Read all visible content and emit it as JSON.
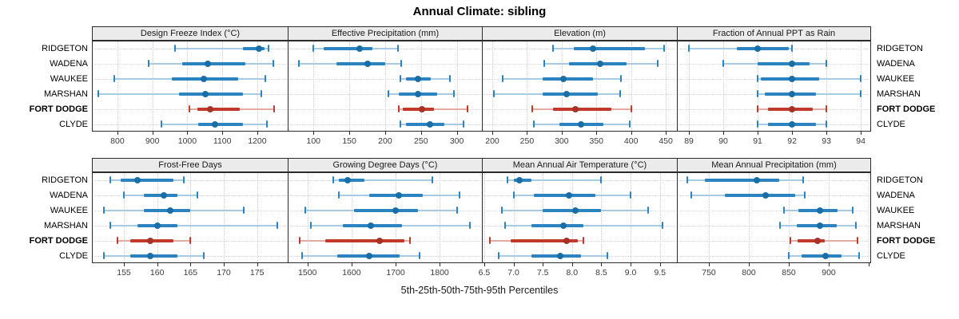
{
  "title": "Annual Climate: sibling",
  "caption": "5th-25th-50th-75th-95th Percentiles",
  "stations": [
    "RIDGETON",
    "WADENA",
    "WAUKEE",
    "MARSHAN",
    "FORT DODGE",
    "CLYDE"
  ],
  "highlight_station": "FORT DODGE",
  "colors": {
    "blue_median": "#1a6ea8",
    "blue_iqr": "#2b83c0",
    "blue_range": "#a6cbe3",
    "red_median": "#a93226",
    "red_iqr": "#c0392b",
    "red_range": "#e4aaa4",
    "header_bg": "#ebebeb",
    "panel_border": "#2b2b2b",
    "gridline": "#d0d0d0",
    "tick_text": "#3c3c3c"
  },
  "chart_data": {
    "type": "scatter",
    "variant": "percentile-interval-dotplot",
    "percentiles": [
      "5th",
      "25th",
      "50th",
      "75th",
      "95th"
    ],
    "layout": {
      "rows": 2,
      "cols": 4,
      "grid": "dotted",
      "station_labels": "both-sides"
    },
    "panels": [
      {
        "title": "Design Freeze Index (°C)",
        "row": 0,
        "col": 0,
        "domain": [
          727,
          1287
        ],
        "tick_values": [
          800,
          900,
          1000,
          1100,
          1200
        ],
        "tick_labels": [
          "800",
          "900",
          "1000",
          "1100",
          "1200"
        ],
        "series": [
          {
            "name": "RIDGETON",
            "values": [
              965,
              1160,
              1205,
              1220,
              1232
            ]
          },
          {
            "name": "WADENA",
            "values": [
              890,
              985,
              1058,
              1165,
              1245
            ]
          },
          {
            "name": "WAUKEE",
            "values": [
              790,
              955,
              1048,
              1145,
              1222
            ]
          },
          {
            "name": "MARSHAN",
            "values": [
              745,
              975,
              1052,
              1160,
              1212
            ]
          },
          {
            "name": "FORT DODGE",
            "values": [
              1005,
              1028,
              1065,
              1150,
              1248
            ]
          },
          {
            "name": "CLYDE",
            "values": [
              925,
              1030,
              1078,
              1158,
              1228
            ]
          }
        ]
      },
      {
        "title": "Effective Precipitation (mm)",
        "row": 0,
        "col": 1,
        "domain": [
          64,
          335
        ],
        "tick_values": [
          100,
          150,
          200,
          250,
          300
        ],
        "tick_labels": [
          "100",
          "150",
          "200",
          "250",
          "300"
        ],
        "series": [
          {
            "name": "RIDGETON",
            "values": [
              100,
              114,
              164,
              182,
              218
            ]
          },
          {
            "name": "WADENA",
            "values": [
              80,
              132,
              175,
              200,
              222
            ]
          },
          {
            "name": "WAUKEE",
            "values": [
              221,
              229,
              246,
              264,
              290
            ]
          },
          {
            "name": "MARSHAN",
            "values": [
              204,
              219,
              246,
              272,
              296
            ]
          },
          {
            "name": "FORT DODGE",
            "values": [
              219,
              225,
              251,
              268,
              315
            ]
          },
          {
            "name": "CLYDE",
            "values": [
              221,
              229,
              262,
              283,
              309
            ]
          }
        ]
      },
      {
        "title": "Elevation (m)",
        "row": 0,
        "col": 2,
        "domain": [
          185,
          466
        ],
        "tick_values": [
          200,
          250,
          300,
          350,
          400,
          450
        ],
        "tick_labels": [
          "200",
          "250",
          "300",
          "350",
          "400",
          "450"
        ],
        "series": [
          {
            "name": "RIDGETON",
            "values": [
              288,
              318,
              345,
              420,
              448
            ]
          },
          {
            "name": "WADENA",
            "values": [
              275,
              310,
              356,
              393,
              438
            ]
          },
          {
            "name": "WAUKEE",
            "values": [
              215,
              272,
              303,
              345,
              385
            ]
          },
          {
            "name": "MARSHAN",
            "values": [
              202,
              272,
              307,
              352,
              384
            ]
          },
          {
            "name": "FORT DODGE",
            "values": [
              258,
              288,
              320,
              372,
              400
            ]
          },
          {
            "name": "CLYDE",
            "values": [
              260,
              297,
              328,
              360,
              398
            ]
          }
        ]
      },
      {
        "title": "Fraction of Annual PPT as Rain",
        "row": 0,
        "col": 3,
        "domain": [
          88.65,
          94.3
        ],
        "tick_values": [
          89,
          90,
          91,
          92,
          93,
          94
        ],
        "tick_labels": [
          "89",
          "90",
          "91",
          "92",
          "93",
          "94"
        ],
        "series": [
          {
            "name": "RIDGETON",
            "values": [
              89,
              90.4,
              91,
              91.9,
              92
            ]
          },
          {
            "name": "WADENA",
            "values": [
              90,
              91,
              92,
              92.5,
              93
            ]
          },
          {
            "name": "WAUKEE",
            "values": [
              91,
              91.1,
              92,
              92.8,
              94
            ]
          },
          {
            "name": "MARSHAN",
            "values": [
              91,
              91.2,
              92,
              92.7,
              94
            ]
          },
          {
            "name": "FORT DODGE",
            "values": [
              91,
              91.3,
              92,
              92.6,
              93
            ]
          },
          {
            "name": "CLYDE",
            "values": [
              91,
              91.3,
              92,
              92.7,
              93
            ]
          }
        ]
      },
      {
        "title": "Frost-Free Days",
        "row": 1,
        "col": 0,
        "domain": [
          150.2,
          179.6
        ],
        "tick_values": [
          155,
          160,
          165,
          170,
          175
        ],
        "tick_labels": [
          "155",
          "160",
          "165",
          "170",
          "175"
        ],
        "series": [
          {
            "name": "RIDGETON",
            "values": [
              153,
              154.5,
              157,
              162.5,
              164
            ]
          },
          {
            "name": "WADENA",
            "values": [
              155,
              158,
              161,
              163,
              166
            ]
          },
          {
            "name": "WAUKEE",
            "values": [
              152,
              158,
              162,
              165,
              173
            ]
          },
          {
            "name": "MARSHAN",
            "values": [
              153,
              157,
              160,
              163,
              178
            ]
          },
          {
            "name": "FORT DODGE",
            "values": [
              154,
              156,
              159,
              162.5,
              165
            ]
          },
          {
            "name": "CLYDE",
            "values": [
              152,
              156,
              159,
              163,
              167
            ]
          }
        ]
      },
      {
        "title": "Growing Degree Days (°C)",
        "row": 1,
        "col": 1,
        "domain": [
          1455,
          1896
        ],
        "tick_values": [
          1500,
          1600,
          1700,
          1800
        ],
        "tick_labels": [
          "1500",
          "1600",
          "1700",
          "1800"
        ],
        "series": [
          {
            "name": "RIDGETON",
            "values": [
              1558,
              1572,
              1592,
              1630,
              1783
            ]
          },
          {
            "name": "WADENA",
            "values": [
              1572,
              1640,
              1707,
              1762,
              1845
            ]
          },
          {
            "name": "WAUKEE",
            "values": [
              1495,
              1605,
              1700,
              1750,
              1840
            ]
          },
          {
            "name": "MARSHAN",
            "values": [
              1508,
              1580,
              1643,
              1715,
              1868
            ]
          },
          {
            "name": "FORT DODGE",
            "values": [
              1482,
              1540,
              1663,
              1720,
              1732
            ]
          },
          {
            "name": "CLYDE",
            "values": [
              1488,
              1567,
              1641,
              1710,
              1755
            ]
          }
        ]
      },
      {
        "title": "Mean Annual Air Temperature (°C)",
        "row": 1,
        "col": 2,
        "domain": [
          6.46,
          9.79
        ],
        "tick_values": [
          6.5,
          7.0,
          7.5,
          8.0,
          8.5,
          9.0,
          9.5
        ],
        "tick_labels": [
          "6.5",
          "7.0",
          "7.5",
          "8.0",
          "8.5",
          "9.0",
          "9.5"
        ],
        "series": [
          {
            "name": "RIDGETON",
            "values": [
              6.9,
              7.0,
              7.1,
              7.3,
              8.5
            ]
          },
          {
            "name": "WADENA",
            "values": [
              7.0,
              7.35,
              7.95,
              8.4,
              9.0
            ]
          },
          {
            "name": "WAUKEE",
            "values": [
              6.8,
              7.5,
              8.05,
              8.5,
              9.3
            ]
          },
          {
            "name": "MARSHAN",
            "values": [
              6.85,
              7.3,
              7.85,
              8.2,
              9.55
            ]
          },
          {
            "name": "FORT DODGE",
            "values": [
              6.6,
              6.95,
              7.9,
              8.1,
              8.2
            ]
          },
          {
            "name": "CLYDE",
            "values": [
              6.75,
              7.3,
              7.8,
              8.15,
              8.6
            ]
          }
        ]
      },
      {
        "title": "Mean Annual Precipitation (mm)",
        "row": 1,
        "col": 3,
        "domain": [
          710,
          953
        ],
        "tick_values": [
          750,
          800,
          850,
          900,
          950
        ],
        "tick_labels": [
          "750",
          "800",
          "850",
          "900",
          ""
        ],
        "series": [
          {
            "name": "RIDGETON",
            "values": [
              723,
              745,
              810,
              838,
              868
            ]
          },
          {
            "name": "WADENA",
            "values": [
              728,
              770,
              821,
              858,
              870
            ]
          },
          {
            "name": "WAUKEE",
            "values": [
              844,
              862,
              889,
              911,
              930
            ]
          },
          {
            "name": "MARSHAN",
            "values": [
              839,
              860,
              889,
              910,
              934
            ]
          },
          {
            "name": "FORT DODGE",
            "values": [
              852,
              861,
              886,
              895,
              936
            ]
          },
          {
            "name": "CLYDE",
            "values": [
              850,
              866,
              896,
              916,
              938
            ]
          }
        ]
      }
    ]
  }
}
